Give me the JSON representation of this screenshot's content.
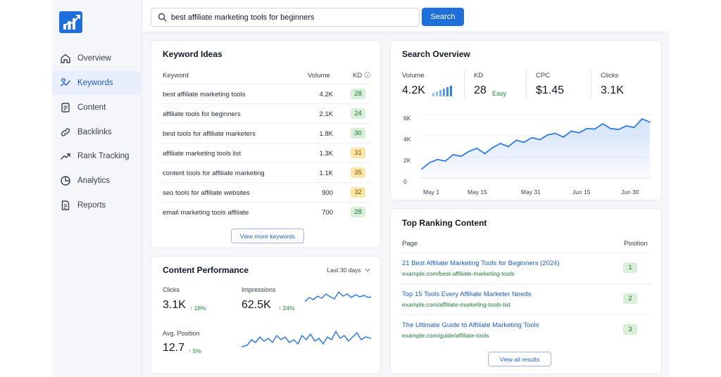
{
  "sidebar": {
    "logo": "bar-chart-logo",
    "items": [
      {
        "label": "Overview",
        "icon": "home-icon",
        "active": false
      },
      {
        "label": "Keywords",
        "icon": "keyword-icon",
        "active": true
      },
      {
        "label": "Content",
        "icon": "document-icon",
        "active": false
      },
      {
        "label": "Backlinks",
        "icon": "link-icon",
        "active": false
      },
      {
        "label": "Rank Tracking",
        "icon": "trend-icon",
        "active": false
      },
      {
        "label": "Analytics",
        "icon": "pie-icon",
        "active": false
      },
      {
        "label": "Reports",
        "icon": "report-icon",
        "active": false
      }
    ]
  },
  "search": {
    "value": "best affiliate marketing tools for beginners",
    "button": "Search"
  },
  "keyword_ideas": {
    "title": "Keyword Ideas",
    "columns": {
      "keyword": "Keyword",
      "volume": "Volume",
      "kd": "KD"
    },
    "rows": [
      {
        "keyword": "best affiliate marketing tools",
        "volume": "4.2K",
        "kd": "28",
        "level": "green"
      },
      {
        "keyword": "affiliate tools for beginners",
        "volume": "2.1K",
        "kd": "24",
        "level": "green"
      },
      {
        "keyword": "best tools for affiliate marketers",
        "volume": "1.8K",
        "kd": "30",
        "level": "green"
      },
      {
        "keyword": "affiliate marketing tools list",
        "volume": "1.3K",
        "kd": "31",
        "level": "yellow"
      },
      {
        "keyword": "content tools for affiliate marketing",
        "volume": "1.1K",
        "kd": "35",
        "level": "yellow"
      },
      {
        "keyword": "seo tools for affiliate websites",
        "volume": "900",
        "kd": "32",
        "level": "yellow"
      },
      {
        "keyword": "email marketing tools affiliate",
        "volume": "700",
        "kd": "28",
        "level": "green"
      }
    ],
    "button": "View more keywords"
  },
  "content_performance": {
    "title": "Content Performance",
    "range": "Last 30 days",
    "metrics": [
      {
        "label": "Clicks",
        "value": "3.1K",
        "change": "18%"
      },
      {
        "label": "Impressions",
        "value": "62.5K",
        "change": "24%"
      },
      {
        "label": "Avg. Position",
        "value": "12.7",
        "change": "5%"
      }
    ]
  },
  "search_overview": {
    "title": "Search Overview",
    "stats": [
      {
        "label": "Volume",
        "value": "4.2K",
        "sub": ""
      },
      {
        "label": "KD",
        "value": "28",
        "sub": "Easy"
      },
      {
        "label": "CPC",
        "value": "$1.45",
        "sub": ""
      },
      {
        "label": "Clicks",
        "value": "3.1K",
        "sub": ""
      }
    ]
  },
  "chart_data": {
    "type": "area",
    "x_ticks": [
      "May 1",
      "May 15",
      "May 31",
      "Jun 15",
      "Jun 30"
    ],
    "y_ticks": [
      "6K",
      "4K",
      "2K",
      "0"
    ],
    "ylim": [
      0,
      6000
    ],
    "color": "#2f7be0",
    "series": [
      {
        "values": [
          900,
          1500,
          1800,
          1650,
          2250,
          2100,
          2550,
          2850,
          2350,
          2900,
          3300,
          3000,
          3600,
          3400,
          3850,
          3650,
          4100,
          4250,
          3900,
          4450,
          4300,
          4700,
          4650,
          5150,
          4700,
          4600,
          4950,
          4800,
          5600,
          5300
        ]
      }
    ]
  },
  "top_ranking": {
    "title": "Top Ranking Content",
    "columns": {
      "page": "Page",
      "position": "Position"
    },
    "rows": [
      {
        "title": "21 Best Affiliate Marketing Tools for Beginners (2024)",
        "url": "example.com/best-affiliate-marketing-tools",
        "position": "1"
      },
      {
        "title": "Top 15 Tools Every Affiliate Marketer Needs",
        "url": "example.com/affiliate-marketing-tools-list",
        "position": "2"
      },
      {
        "title": "The Ultimate Guide to Affiliate Marketing Tools",
        "url": "example.com/guide/affiliate-tools",
        "position": "3"
      }
    ],
    "button": "View all results"
  }
}
